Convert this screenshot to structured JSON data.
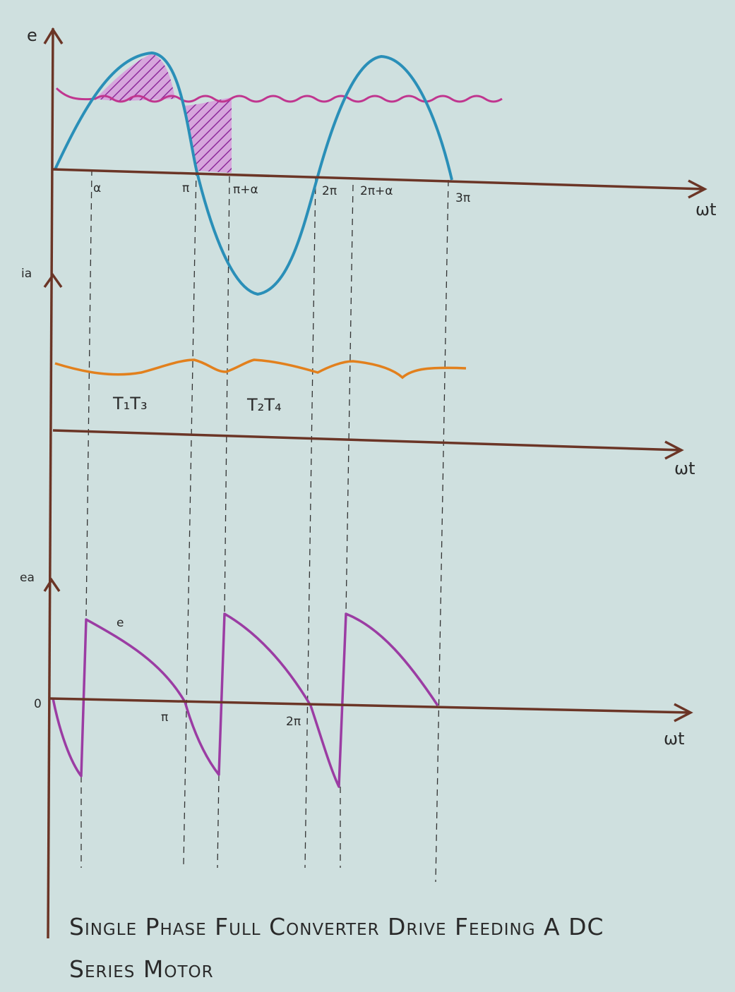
{
  "panels": [
    {
      "y_label": "e",
      "x_label": "ωt",
      "ticks": [
        "α",
        "π",
        "π+α",
        "2π",
        "2π+α",
        "3π"
      ]
    },
    {
      "y_label": "ia",
      "x_label": "ωt",
      "annotations": [
        "T₁T₃",
        "T₂T₄"
      ]
    },
    {
      "y_label": "ea",
      "x_label": "ωt",
      "origin": "0",
      "curve_label": "e",
      "ticks": [
        "π",
        "2π"
      ]
    }
  ],
  "caption": {
    "lines": [
      "Single Phase Full Converter Drive Feeding A DC",
      "Series Motor"
    ]
  }
}
